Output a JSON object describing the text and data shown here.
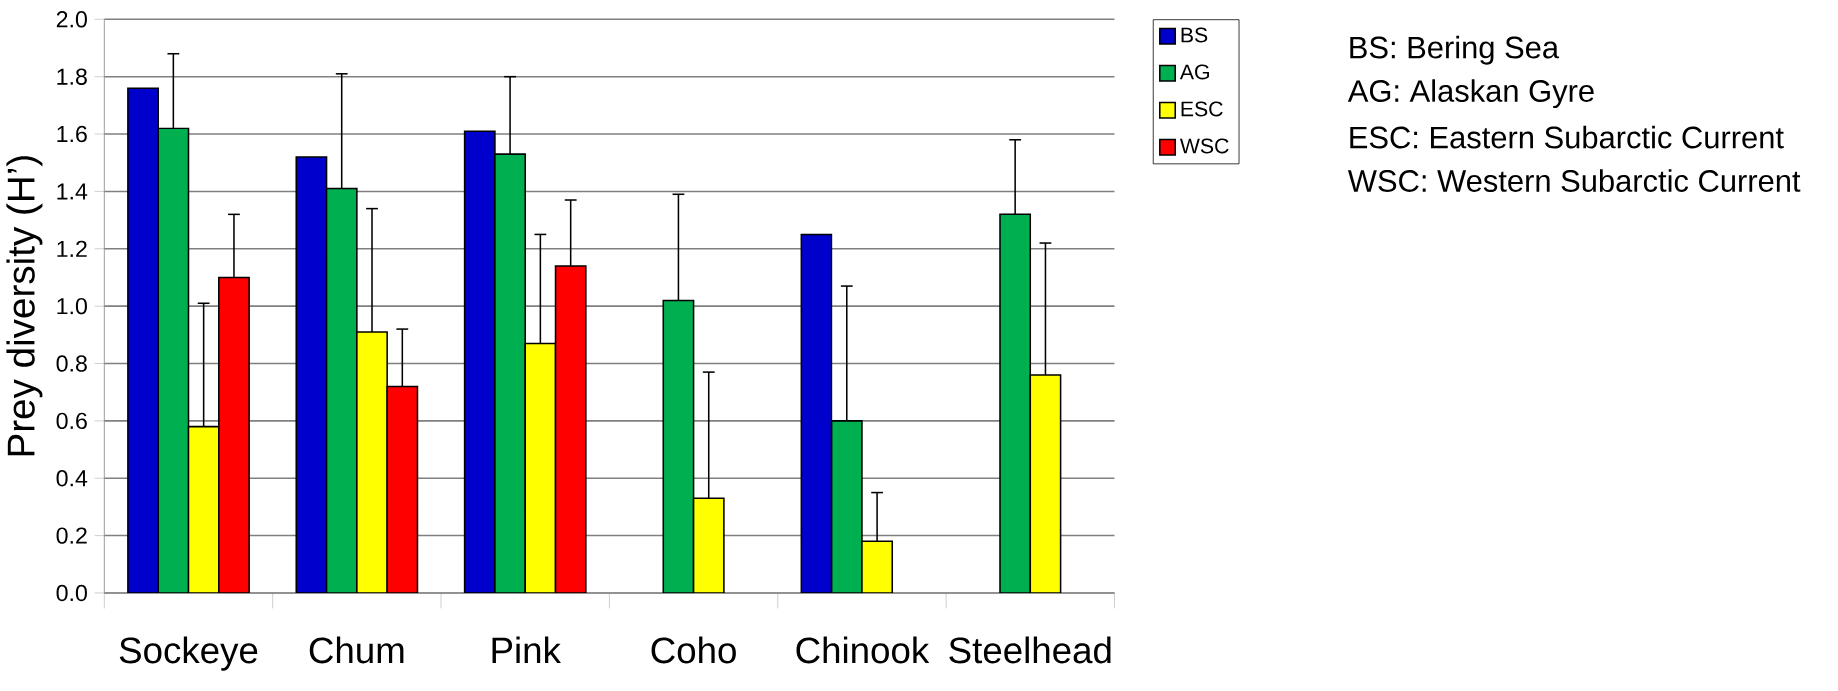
{
  "chart_data": {
    "type": "bar",
    "ylabel": "Prey diversity (H’)",
    "categories": [
      "Sockeye",
      "Chum",
      "Pink",
      "Coho",
      "Chinook",
      "Steelhead"
    ],
    "series": [
      {
        "name": "BS",
        "color": "#0000cc",
        "values": [
          1.76,
          1.52,
          1.61,
          null,
          1.25,
          null
        ]
      },
      {
        "name": "AG",
        "color": "#00b050",
        "values": [
          1.62,
          1.41,
          1.53,
          1.02,
          0.6,
          1.32
        ],
        "errors": [
          [
            1.62,
            1.88
          ],
          [
            1.41,
            1.81
          ],
          [
            1.53,
            1.8
          ],
          [
            1.02,
            1.39
          ],
          [
            0.6,
            1.07
          ],
          [
            1.32,
            1.58
          ]
        ]
      },
      {
        "name": "ESC",
        "color": "#ffff00",
        "values": [
          0.58,
          0.91,
          0.87,
          0.33,
          0.18,
          0.76
        ],
        "errors": [
          [
            0.58,
            1.01
          ],
          [
            0.91,
            1.34
          ],
          [
            0.87,
            1.25
          ],
          [
            0.33,
            0.77
          ],
          [
            0.18,
            0.35
          ],
          [
            0.76,
            1.22
          ]
        ]
      },
      {
        "name": "WSC",
        "color": "#ff0000",
        "values": [
          1.1,
          0.72,
          1.14,
          null,
          null,
          null
        ],
        "errors": [
          [
            1.1,
            1.32
          ],
          [
            0.72,
            0.92
          ],
          [
            1.14,
            1.37
          ],
          null,
          null,
          null
        ]
      }
    ],
    "ylim": [
      0,
      2
    ],
    "yticks": [
      {
        "value": 0,
        "label": "0.0"
      },
      {
        "value": 0.2,
        "label": "0.2"
      },
      {
        "value": 0.4,
        "label": "0.4"
      },
      {
        "value": 0.6,
        "label": "0.6"
      },
      {
        "value": 0.8,
        "label": "0.8"
      },
      {
        "value": 1.0,
        "label": "1.0"
      },
      {
        "value": 1.2,
        "label": "1.2"
      },
      {
        "value": 1.4,
        "label": "1.4"
      },
      {
        "value": 1.6,
        "label": "1.6"
      },
      {
        "value": 1.8,
        "label": "1.8"
      },
      {
        "value": 2.0,
        "label": "2.0"
      }
    ],
    "grid": "y",
    "legend": "top right",
    "annotations": [
      "BS: Bering Sea",
      "AG: Alaskan Gyre",
      "ESC: Eastern Subarctic Current",
      "WSC: Western Subarctic Current"
    ]
  }
}
